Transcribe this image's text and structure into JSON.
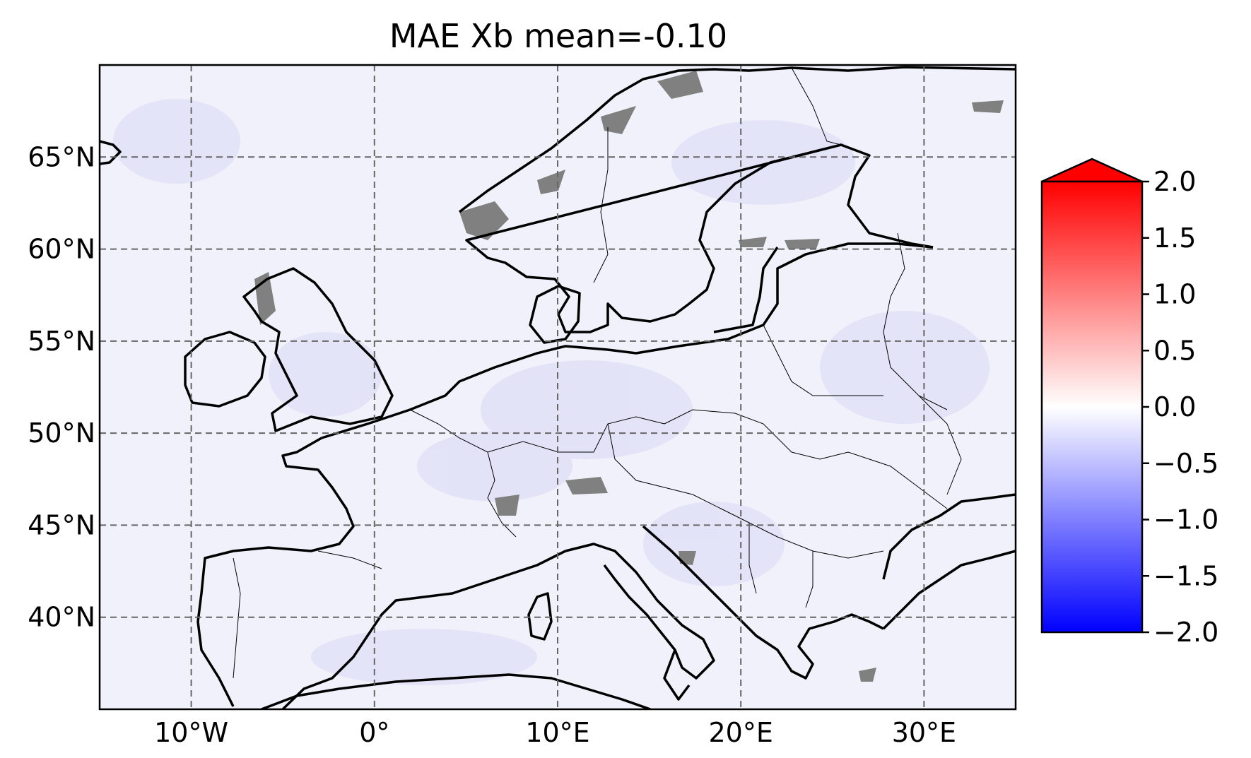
{
  "title": "MAE Xb mean=-0.10",
  "map": {
    "extent": {
      "lon_min": -15,
      "lon_max": 35,
      "lat_min": 35,
      "lat_max": 70
    },
    "gridlines": {
      "style": "dashed",
      "color": "#666666",
      "lon": [
        -10,
        0,
        10,
        20,
        30
      ],
      "lat": [
        40,
        45,
        50,
        55,
        60,
        65
      ]
    },
    "lon_labels": [
      {
        "lon": -10,
        "text": "10°W"
      },
      {
        "lon": 0,
        "text": "0°"
      },
      {
        "lon": 10,
        "text": "10°E"
      },
      {
        "lon": 20,
        "text": "20°E"
      },
      {
        "lon": 30,
        "text": "30°E"
      }
    ],
    "lat_labels": [
      {
        "lat": 40,
        "text": "40°N"
      },
      {
        "lat": 45,
        "text": "45°N"
      },
      {
        "lat": 50,
        "text": "50°N"
      },
      {
        "lat": 55,
        "text": "55°N"
      },
      {
        "lat": 60,
        "text": "60°N"
      },
      {
        "lat": 65,
        "text": "65°N"
      }
    ],
    "field_fill_color": "#eeeefa",
    "missing_color": "#808080",
    "coastline_color": "#000000",
    "border_color": "#000000"
  },
  "colorbar": {
    "cmap": "bwr",
    "vmin": -2.0,
    "vmax": 2.0,
    "extend": "max",
    "top_color": "#ff0000",
    "mid_color": "#ffffff",
    "bottom_color": "#0000ff",
    "ticks": [
      {
        "value": 2.0,
        "text": "2.0"
      },
      {
        "value": 1.5,
        "text": "1.5"
      },
      {
        "value": 1.0,
        "text": "1.0"
      },
      {
        "value": 0.5,
        "text": "0.5"
      },
      {
        "value": 0.0,
        "text": "0.0"
      },
      {
        "value": -0.5,
        "text": "−0.5"
      },
      {
        "value": -1.0,
        "text": "−1.0"
      },
      {
        "value": -1.5,
        "text": "−1.5"
      },
      {
        "value": -2.0,
        "text": "−2.0"
      }
    ]
  }
}
